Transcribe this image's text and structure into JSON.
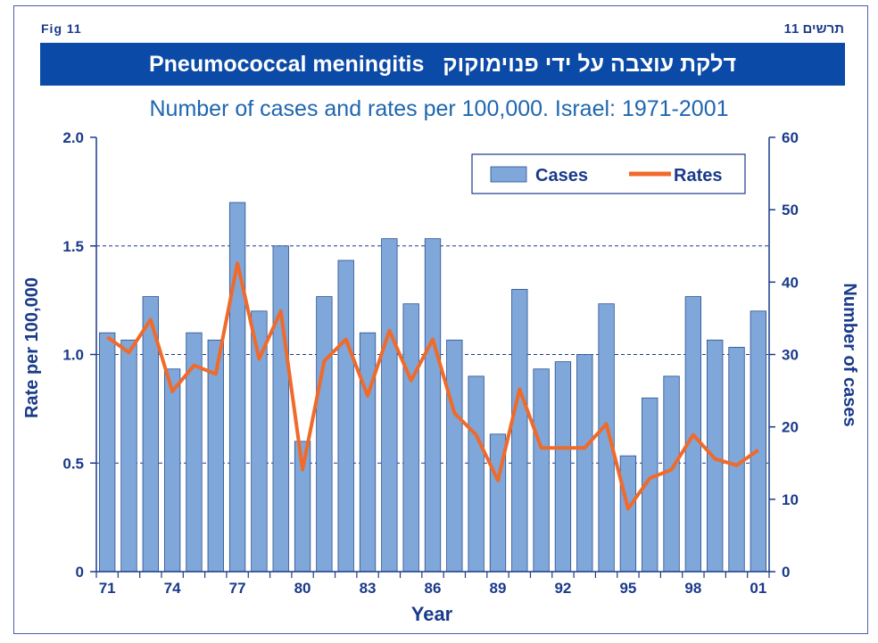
{
  "header": {
    "fig_label": "Fig  11",
    "fig_label_hebrew": "תרשים 11",
    "title_english": "Pneumococcal meningitis",
    "title_hebrew": "דלקת עוצבה על ידי פנוימוקוק"
  },
  "colors": {
    "banner": "#0b4aa6",
    "bars": "#7fa7d9",
    "bar_stroke": "#2a4f8f",
    "line": "#f06a2a",
    "axis_text": "#1a3a8a"
  },
  "chart_data": {
    "type": "bar",
    "title": "Number of cases and rates per 100,000. Israel: 1971-2001",
    "xlabel": "Year",
    "ylabel_left": "Rate per 100,000",
    "ylabel_right": "Number of cases",
    "x_tick_labels": [
      "71",
      "74",
      "77",
      "80",
      "83",
      "86",
      "89",
      "92",
      "95",
      "98",
      "01"
    ],
    "left_axis": {
      "range": [
        0,
        2.0
      ],
      "ticks": [
        "0",
        "0.5",
        "1.0",
        "1.5",
        "2.0"
      ]
    },
    "right_axis": {
      "range": [
        0,
        60
      ],
      "ticks": [
        "0",
        "10",
        "20",
        "30",
        "40",
        "50",
        "60"
      ]
    },
    "grid": "dashed horizontal at 0.5, 1.0, 1.5",
    "legend": {
      "position": "top-right",
      "entries": [
        "Cases",
        "Rates"
      ]
    },
    "categories": [
      "1971",
      "1972",
      "1973",
      "1974",
      "1975",
      "1976",
      "1977",
      "1978",
      "1979",
      "1980",
      "1981",
      "1982",
      "1983",
      "1984",
      "1985",
      "1986",
      "1987",
      "1988",
      "1989",
      "1990",
      "1991",
      "1992",
      "1993",
      "1994",
      "1995",
      "1996",
      "1997",
      "1998",
      "1999",
      "2000",
      "2001"
    ],
    "series": [
      {
        "name": "Cases",
        "axis": "right",
        "kind": "bar",
        "values": [
          33,
          32,
          38,
          28,
          33,
          32,
          51,
          36,
          45,
          18,
          38,
          43,
          33,
          46,
          37,
          46,
          32,
          27,
          19,
          39,
          28,
          29,
          30,
          37,
          16,
          24,
          27,
          38,
          32,
          31,
          36
        ]
      },
      {
        "name": "Rates",
        "axis": "left",
        "kind": "line",
        "values": [
          1.08,
          1.01,
          1.16,
          0.83,
          0.95,
          0.91,
          1.42,
          0.98,
          1.2,
          0.47,
          0.97,
          1.07,
          0.81,
          1.11,
          0.88,
          1.07,
          0.73,
          0.63,
          0.42,
          0.84,
          0.57,
          0.57,
          0.57,
          0.68,
          0.29,
          0.43,
          0.47,
          0.63,
          0.52,
          0.49,
          0.56
        ]
      }
    ]
  }
}
